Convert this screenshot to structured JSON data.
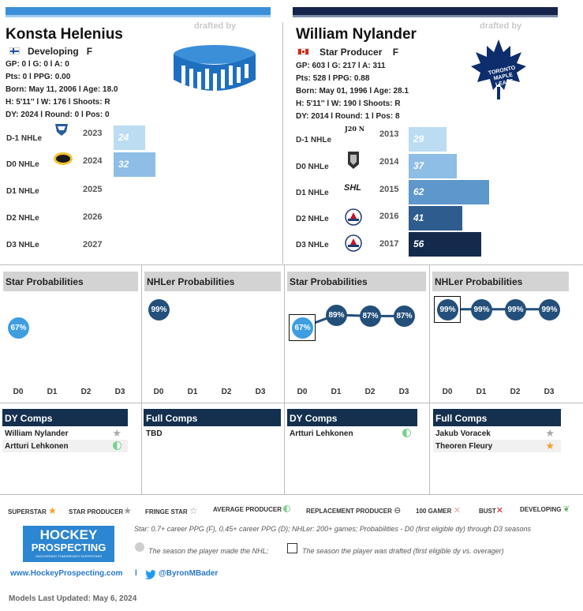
{
  "left": {
    "name": "Konsta Helenius",
    "flag": "finland-flag",
    "status": "Developing",
    "position": "F",
    "drafted_by_label": "drafted by",
    "team_logo": "generic-hockey-puck-logo",
    "stats_line1": "GP: 0 l G: 0 l A: 0",
    "stats_line2": "Pts: 0 l PPG: 0.00",
    "bio_line1": "Born: May 11, 2006 l Age: 18.0",
    "bio_line2": "H: 5'11'' l W: 176 l Shoots: R",
    "bio_line3": "DY: 2024 l Round: 0 l Pos: 0",
    "nhle_rows": [
      {
        "label": "D-1 NHLe",
        "year": "2023",
        "value": 24,
        "value_label": "24",
        "league_icon": "league-logo-icon"
      },
      {
        "label": "D0 NHLe",
        "year": "2024",
        "value": 32,
        "value_label": "32",
        "league_icon": "league-logo-icon"
      },
      {
        "label": "D1 NHLe",
        "year": "2025",
        "value": null,
        "value_label": ""
      },
      {
        "label": "D2 NHLe",
        "year": "2026",
        "value": null,
        "value_label": ""
      },
      {
        "label": "D3 NHLe",
        "year": "2027",
        "value": null,
        "value_label": ""
      }
    ],
    "star_prob": {
      "title": "Star Probabilities",
      "points": [
        {
          "label": "D0",
          "value": 67,
          "text": "67%"
        }
      ],
      "axis": [
        "D0",
        "D1",
        "D2",
        "D3"
      ]
    },
    "nhl_prob": {
      "title": "NHLer Probabilities",
      "points": [
        {
          "label": "D0",
          "value": 99,
          "text": "99%"
        }
      ],
      "axis": [
        "D0",
        "D1",
        "D2",
        "D3"
      ]
    },
    "dy_comps": {
      "title": "DY Comps",
      "items": [
        {
          "name": "William Nylander",
          "icon": "star-producer-icon"
        },
        {
          "name": "Artturi Lehkonen",
          "icon": "average-producer-icon"
        }
      ]
    },
    "full_comps": {
      "title": "Full Comps",
      "items": [
        {
          "name": "TBD",
          "icon": ""
        }
      ]
    }
  },
  "right": {
    "name": "William Nylander",
    "flag": "canada-flag",
    "status": "Star Producer",
    "position": "F",
    "drafted_by_label": "drafted by",
    "team_logo": "toronto-maple-leafs-logo",
    "team_logo_text": [
      "TORONTO",
      "MAPLE",
      "LEAFS"
    ],
    "stats_line1": "GP: 603 l G: 217 l A: 311",
    "stats_line2": "Pts: 528 l PPG: 0.88",
    "bio_line1": "Born: May 01, 1996 l Age: 28.1",
    "bio_line2": "H: 5'11'' l W: 190 l Shoots: R",
    "bio_line3": "DY: 2014 l Round: 1 l Pos: 8",
    "nhle_rows": [
      {
        "label": "D-1 NHLe",
        "year": "2013",
        "value": 29,
        "value_label": "29",
        "league_icon": "j20n-logo",
        "league_text": "J20 N"
      },
      {
        "label": "D0 NHLe",
        "year": "2014",
        "value": 37,
        "value_label": "37",
        "league_icon": "team-logo-icon"
      },
      {
        "label": "D1 NHLe",
        "year": "2015",
        "value": 62,
        "value_label": "62",
        "league_icon": "shl-logo",
        "league_text": "SHL"
      },
      {
        "label": "D2 NHLe",
        "year": "2016",
        "value": 41,
        "value_label": "41",
        "league_icon": "ahl-logo-icon"
      },
      {
        "label": "D3 NHLe",
        "year": "2017",
        "value": 56,
        "value_label": "56",
        "league_icon": "ahl-logo-icon"
      }
    ],
    "star_prob": {
      "title": "Star Probabilities",
      "points": [
        {
          "label": "D0",
          "value": 67,
          "text": "67%"
        },
        {
          "label": "D1",
          "value": 89,
          "text": "89%"
        },
        {
          "label": "D2",
          "value": 87,
          "text": "87%"
        },
        {
          "label": "D3",
          "value": 87,
          "text": "87%"
        }
      ],
      "axis": [
        "D0",
        "D1",
        "D2",
        "D3"
      ]
    },
    "nhl_prob": {
      "title": "NHLer Probabilities",
      "points": [
        {
          "label": "D0",
          "value": 99,
          "text": "99%"
        },
        {
          "label": "D1",
          "value": 99,
          "text": "99%"
        },
        {
          "label": "D2",
          "value": 99,
          "text": "99%"
        },
        {
          "label": "D3",
          "value": 99,
          "text": "99%"
        }
      ],
      "axis": [
        "D0",
        "D1",
        "D2",
        "D3"
      ]
    },
    "dy_comps": {
      "title": "DY Comps",
      "items": [
        {
          "name": "Artturi Lehkonen",
          "icon": "average-producer-icon"
        }
      ]
    },
    "full_comps": {
      "title": "Full Comps",
      "items": [
        {
          "name": "Jakub Voracek",
          "icon": "star-producer-icon"
        },
        {
          "name": "Theoren Fleury",
          "icon": "superstar-icon"
        }
      ]
    }
  },
  "legend": [
    {
      "label": "SUPERSTAR",
      "icon": "superstar-icon"
    },
    {
      "label": "STAR PRODUCER",
      "icon": "star-producer-icon"
    },
    {
      "label": "FRINGE STAR",
      "icon": "fringe-star-icon"
    },
    {
      "label": "AVERAGE PRODUCER",
      "icon": "average-producer-icon"
    },
    {
      "label": "REPLACEMENT PRODUCER",
      "icon": "replacement-producer-icon"
    },
    {
      "label": "100 GAMER",
      "icon": "100-gamer-icon"
    },
    {
      "label": "BUST",
      "icon": "bust-icon"
    },
    {
      "label": "DEVELOPING",
      "icon": "developing-icon"
    }
  ],
  "footer": {
    "brand_line1": "HOCKEY",
    "brand_line2": "PROSPECTING",
    "brand_tagline": "UNCOVERING TOMORROW'S SUPERSTARS",
    "definition": "Star: 0.7+ career PPG (F), 0.45+ career PPG (D); NHLer: 200+ games; Probabilities - D0 (first eligible dy) through D3 seasons",
    "nhl_marker_note": "The season the player made the NHL;",
    "draft_marker_note": "The season the player was drafted (first eligible dy vs. overager)",
    "website": "www.HockeyProspecting.com",
    "separator": "l",
    "twitter": "@ByronMBader",
    "updated": "Models Last Updated: May 6, 2024"
  },
  "colors": {
    "left_accent": "#3b8fd9",
    "right_accent": "#14244a",
    "navy": "#14304e",
    "dot_navy": "#244f7a",
    "dot_light": "#3f9ee0",
    "bar_scale": [
      "#bcdcf2",
      "#8ebde6",
      "#5d97cb",
      "#2e5c8f",
      "#142a4c"
    ]
  }
}
